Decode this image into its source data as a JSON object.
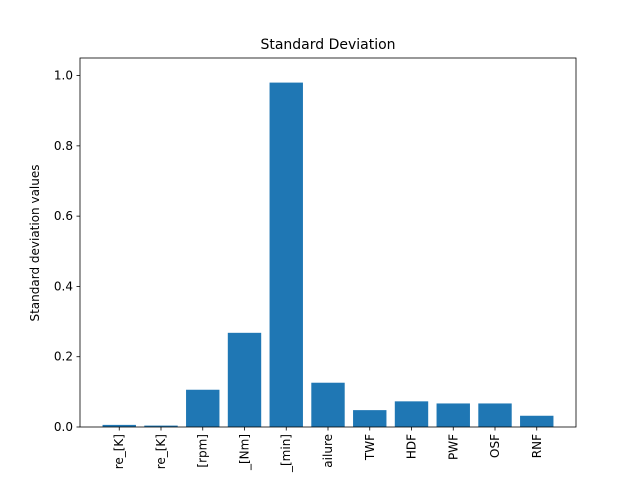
{
  "chart_data": {
    "type": "bar",
    "title": "Standard Deviation",
    "xlabel": "",
    "ylabel": "Standard deviation values",
    "categories": [
      "re_[K]",
      "re_[K]",
      "[rpm]",
      "_[Nm]",
      "_[min]",
      "ailure",
      "TWF",
      "HDF",
      "PWF",
      "OSF",
      "RNF"
    ],
    "values": [
      0.006,
      0.004,
      0.106,
      0.268,
      0.98,
      0.126,
      0.048,
      0.073,
      0.067,
      0.067,
      0.032
    ],
    "ylim": [
      0,
      1.05
    ],
    "yticks": [
      0.0,
      0.2,
      0.4,
      0.6,
      0.8,
      1.0
    ],
    "ytick_labels": [
      "0.0",
      "0.2",
      "0.4",
      "0.6",
      "0.8",
      "1.0"
    ],
    "grid": false,
    "bar_color": "#1f77b4"
  }
}
